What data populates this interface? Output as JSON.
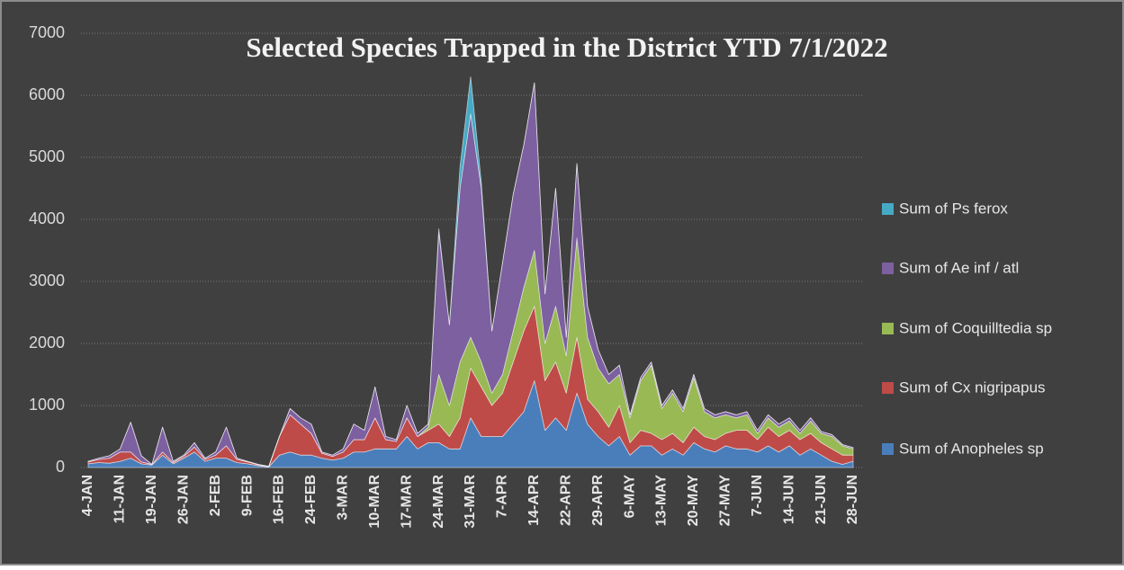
{
  "chart_data": {
    "type": "stacked_area",
    "title": "Selected Species Trapped in the District YTD 7/1/2022",
    "categories": [
      "4-JAN",
      null,
      null,
      "11-JAN",
      null,
      null,
      "19-JAN",
      null,
      null,
      "26-JAN",
      null,
      null,
      "2-FEB",
      null,
      null,
      "9-FEB",
      null,
      null,
      "16-FEB",
      null,
      null,
      "24-FEB",
      null,
      null,
      "3-MAR",
      null,
      null,
      "10-MAR",
      null,
      null,
      "17-MAR",
      null,
      null,
      "24-MAR",
      null,
      null,
      "31-MAR",
      null,
      null,
      "7-APR",
      null,
      null,
      "14-APR",
      null,
      null,
      "22-APR",
      null,
      null,
      "29-APR",
      null,
      null,
      "6-MAY",
      null,
      null,
      "13-MAY",
      null,
      null,
      "20-MAY",
      null,
      null,
      "27-MAY",
      null,
      null,
      "7-JUN",
      null,
      null,
      "14-JUN",
      null,
      null,
      "21-JUN",
      null,
      null,
      "28-JUN"
    ],
    "series": [
      {
        "name": "Sum of Anopheles sp",
        "color": "#4a7ebb",
        "values": [
          60,
          80,
          70,
          100,
          150,
          60,
          40,
          200,
          60,
          150,
          250,
          100,
          150,
          150,
          80,
          60,
          30,
          10,
          200,
          250,
          200,
          200,
          150,
          120,
          150,
          250,
          250,
          300,
          300,
          300,
          500,
          300,
          400,
          400,
          300,
          300,
          800,
          500,
          500,
          500,
          700,
          900,
          1400,
          600,
          800,
          600,
          1200,
          700,
          500,
          350,
          500,
          200,
          350,
          350,
          200,
          300,
          200,
          400,
          300,
          250,
          350,
          300,
          300,
          250,
          350,
          250,
          350,
          200,
          300,
          200,
          100,
          50,
          100
        ]
      },
      {
        "name": "Sum of Cx nigripapus",
        "color": "#be4b48",
        "values": [
          30,
          50,
          80,
          150,
          100,
          30,
          10,
          50,
          20,
          30,
          80,
          30,
          50,
          200,
          50,
          30,
          15,
          5,
          300,
          600,
          500,
          350,
          80,
          60,
          100,
          200,
          200,
          500,
          150,
          120,
          300,
          200,
          200,
          300,
          200,
          500,
          800,
          800,
          500,
          700,
          1000,
          1300,
          1200,
          800,
          900,
          600,
          900,
          400,
          400,
          300,
          500,
          200,
          250,
          200,
          250,
          250,
          200,
          250,
          200,
          200,
          200,
          300,
          300,
          200,
          300,
          250,
          250,
          250,
          250,
          200,
          200,
          150,
          100
        ]
      },
      {
        "name": "Sum of Coquilltedia sp",
        "color": "#98b954",
        "values": [
          0,
          0,
          0,
          0,
          0,
          0,
          0,
          0,
          0,
          0,
          0,
          0,
          0,
          0,
          0,
          0,
          0,
          0,
          0,
          0,
          0,
          0,
          0,
          0,
          0,
          0,
          0,
          0,
          0,
          0,
          0,
          0,
          50,
          800,
          500,
          900,
          500,
          400,
          200,
          300,
          500,
          700,
          900,
          600,
          900,
          600,
          1600,
          1000,
          700,
          700,
          500,
          400,
          800,
          1100,
          500,
          650,
          500,
          800,
          400,
          350,
          300,
          200,
          250,
          100,
          150,
          150,
          150,
          100,
          200,
          150,
          200,
          150,
          100
        ]
      },
      {
        "name": "Sum of Ae inf / atl",
        "color": "#7d60a0",
        "values": [
          10,
          20,
          40,
          50,
          480,
          100,
          0,
          400,
          20,
          20,
          70,
          20,
          50,
          300,
          20,
          10,
          5,
          5,
          0,
          100,
          100,
          150,
          20,
          20,
          50,
          250,
          150,
          500,
          50,
          30,
          200,
          50,
          50,
          2300,
          1300,
          2800,
          3600,
          2800,
          1000,
          1800,
          2200,
          2300,
          2700,
          800,
          1900,
          300,
          1200,
          500,
          300,
          150,
          150,
          50,
          50,
          50,
          50,
          50,
          50,
          50,
          50,
          50,
          50,
          50,
          50,
          50,
          50,
          50,
          50,
          50,
          50,
          30,
          30,
          20,
          20
        ]
      },
      {
        "name": "Sum of Ps ferox",
        "color": "#46aac5",
        "values": [
          0,
          0,
          0,
          0,
          0,
          0,
          0,
          0,
          0,
          0,
          0,
          0,
          0,
          0,
          0,
          0,
          0,
          0,
          0,
          0,
          0,
          0,
          0,
          0,
          0,
          0,
          0,
          0,
          0,
          0,
          0,
          0,
          0,
          50,
          0,
          350,
          600,
          100,
          0,
          0,
          0,
          0,
          0,
          0,
          0,
          0,
          0,
          0,
          0,
          0,
          0,
          0,
          0,
          0,
          0,
          0,
          0,
          0,
          0,
          0,
          0,
          0,
          0,
          0,
          0,
          0,
          0,
          0,
          0,
          0,
          0,
          0,
          0
        ]
      }
    ],
    "ylim": [
      0,
      7000
    ],
    "yticks": [
      0,
      1000,
      2000,
      3000,
      4000,
      5000,
      6000,
      7000
    ],
    "grid": true,
    "legend": "right"
  }
}
